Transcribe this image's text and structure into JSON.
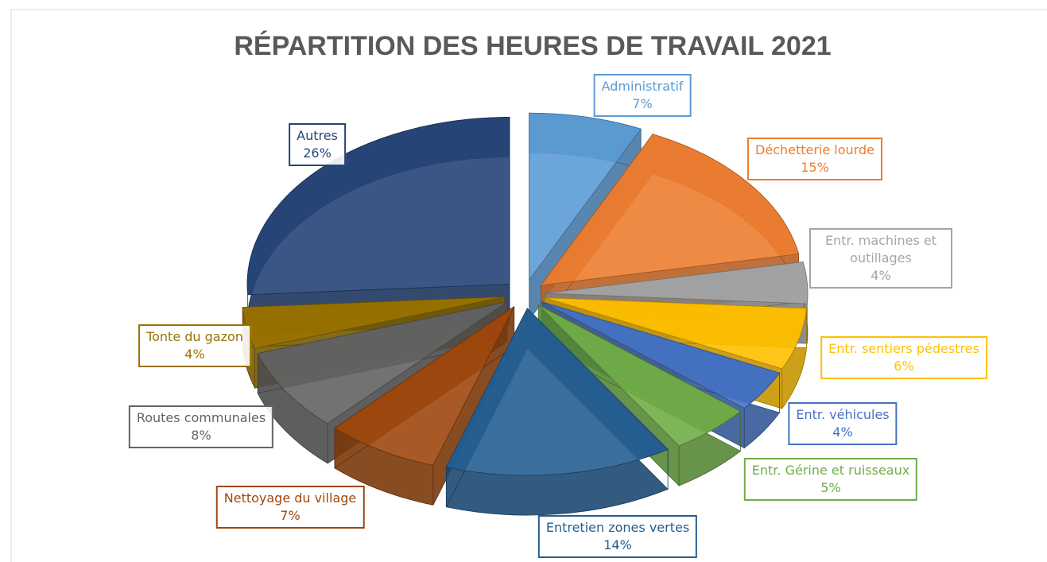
{
  "chart_data": {
    "type": "pie",
    "title": "RÉPARTITION DES HEURES DE TRAVAIL 2021",
    "categories": [
      "Administratif",
      "Déchetterie lourde",
      "Entr. machines et outillages",
      "Entr. sentiers pédestres",
      "Entr. véhicules",
      "Entr. Gérine et ruisseaux",
      "Entretien zones vertes",
      "Nettoyage du village",
      "Routes communales",
      "Tonte du gazon",
      "Autres"
    ],
    "values": [
      7,
      15,
      4,
      6,
      4,
      5,
      14,
      7,
      8,
      4,
      26
    ],
    "value_labels": [
      "7%",
      "15%",
      "4%",
      "6%",
      "4%",
      "5%",
      "14%",
      "7%",
      "8%",
      "4%",
      "26%"
    ],
    "colors": [
      "#5b9bd5",
      "#ed7d31",
      "#a5a5a5",
      "#ffc000",
      "#4472c4",
      "#70ad47",
      "#255e91",
      "#9e480e",
      "#636363",
      "#997300",
      "#264478"
    ]
  }
}
